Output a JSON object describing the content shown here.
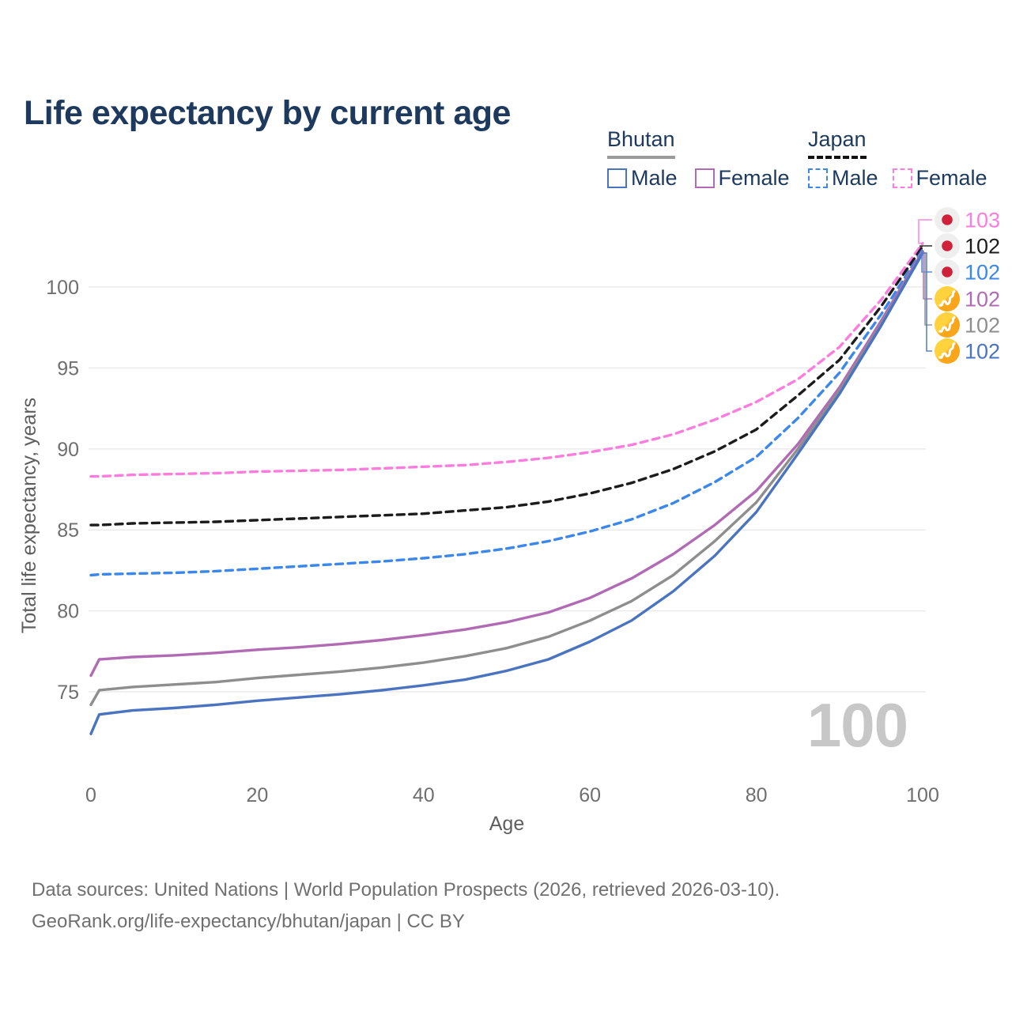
{
  "header": {
    "title": "Life expectancy by current age"
  },
  "legend": {
    "groups": [
      {
        "name": "Bhutan",
        "line_style": "solid",
        "underline_color": "#9b9b9b",
        "items": [
          {
            "label": "Male",
            "color": "#4b74c0"
          },
          {
            "label": "Female",
            "color": "#b16bb4"
          }
        ]
      },
      {
        "name": "Japan",
        "line_style": "dashed",
        "underline_color": "#111111",
        "items": [
          {
            "label": "Male",
            "color": "#3c87ea"
          },
          {
            "label": "Female",
            "color": "#fd7dde"
          }
        ]
      }
    ]
  },
  "chart_data": {
    "type": "line",
    "title": "Life expectancy by current age",
    "xlabel": "Age",
    "ylabel": "Total life expectancy, years",
    "x_ticks": [
      0,
      20,
      40,
      60,
      80,
      100
    ],
    "y_ticks": [
      75,
      80,
      85,
      90,
      95,
      100
    ],
    "xlim": [
      0,
      100
    ],
    "ylim": [
      72,
      103.5
    ],
    "grid": "horizontal",
    "legend_position": "top-right",
    "age_indicator": "100",
    "x": [
      0,
      1,
      5,
      10,
      15,
      20,
      25,
      30,
      35,
      40,
      45,
      50,
      55,
      60,
      65,
      70,
      75,
      80,
      85,
      90,
      95,
      100
    ],
    "series": [
      {
        "name": "Japan Female",
        "country": "Japan",
        "sex": "Female",
        "color": "#fd7dde",
        "dash": true,
        "flag": "japan",
        "end_label": "103",
        "values": [
          88.3,
          88.3,
          88.4,
          88.45,
          88.5,
          88.6,
          88.65,
          88.7,
          88.8,
          88.9,
          89.0,
          89.2,
          89.45,
          89.8,
          90.25,
          90.9,
          91.8,
          92.9,
          94.3,
          96.3,
          99.2,
          102.7
        ]
      },
      {
        "name": "Japan Total",
        "country": "Japan",
        "sex": "Both",
        "color": "#1c1c1c",
        "dash": true,
        "flag": "japan",
        "end_label": "102",
        "values": [
          85.3,
          85.3,
          85.4,
          85.45,
          85.5,
          85.6,
          85.7,
          85.8,
          85.9,
          86.0,
          86.2,
          86.4,
          86.75,
          87.25,
          87.9,
          88.75,
          89.85,
          91.2,
          93.3,
          95.5,
          98.8,
          102.5
        ]
      },
      {
        "name": "Japan Male",
        "country": "Japan",
        "sex": "Male",
        "color": "#3c87ea",
        "dash": true,
        "flag": "japan",
        "end_label": "102",
        "values": [
          82.2,
          82.25,
          82.3,
          82.35,
          82.45,
          82.6,
          82.75,
          82.9,
          83.05,
          83.25,
          83.5,
          83.85,
          84.3,
          84.9,
          85.65,
          86.65,
          87.95,
          89.5,
          91.9,
          94.7,
          98.3,
          102.3
        ]
      },
      {
        "name": "Bhutan Female",
        "country": "Bhutan",
        "sex": "Female",
        "color": "#b16bb4",
        "dash": false,
        "flag": "bhutan",
        "end_label": "102",
        "values": [
          76.0,
          77.0,
          77.15,
          77.25,
          77.4,
          77.6,
          77.75,
          77.95,
          78.2,
          78.5,
          78.85,
          79.3,
          79.9,
          80.8,
          82.0,
          83.5,
          85.3,
          87.4,
          90.3,
          93.8,
          97.9,
          102.2
        ]
      },
      {
        "name": "Bhutan Total",
        "country": "Bhutan",
        "sex": "Both",
        "color": "#8e8e8e",
        "dash": false,
        "flag": "bhutan",
        "end_label": "102",
        "values": [
          74.2,
          75.1,
          75.3,
          75.45,
          75.6,
          75.85,
          76.05,
          76.25,
          76.5,
          76.8,
          77.2,
          77.7,
          78.4,
          79.4,
          80.6,
          82.2,
          84.3,
          86.7,
          90.0,
          93.6,
          97.7,
          102.1
        ]
      },
      {
        "name": "Bhutan Male",
        "country": "Bhutan",
        "sex": "Male",
        "color": "#4b74c0",
        "dash": false,
        "flag": "bhutan",
        "end_label": "102",
        "values": [
          72.4,
          73.6,
          73.85,
          74.0,
          74.2,
          74.45,
          74.65,
          74.85,
          75.1,
          75.4,
          75.75,
          76.3,
          77.0,
          78.1,
          79.4,
          81.2,
          83.4,
          86.1,
          89.7,
          93.4,
          97.6,
          102.1
        ]
      }
    ],
    "colors": {
      "grid": "#e8e8e8",
      "tick_text": "#6f6f6f",
      "axis_title_text": "#5e5e5e",
      "title_text": "#1d3a5e",
      "age_indicator": "#c7c7c7",
      "japan_flag_bg": "#efefef",
      "japan_flag_dot": "#d0213a",
      "bhutan_flag_yellow": "#ffd23e",
      "bhutan_flag_orange": "#faa61a"
    }
  },
  "footer": {
    "line1": "Data sources: United Nations | World Population Prospects (2026, retrieved 2026-03-10).",
    "line2": "GeoRank.org/life-expectancy/bhutan/japan | CC BY"
  }
}
